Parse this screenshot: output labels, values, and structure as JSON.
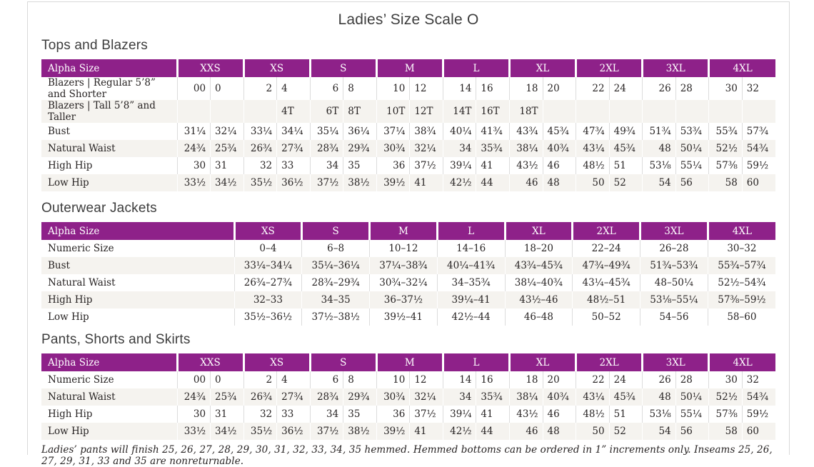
{
  "page": {
    "title": "Ladies’ Size Scale O",
    "footnote": "Ladies’ pants will finish 25, 26, 27, 28, 29, 30, 31, 32, 33, 34, 35 hemmed. Hemmed bottoms can be ordered in 1” increments only. Inseams 25, 26, 27, 29, 31, 33 and 35 are nonreturnable."
  },
  "colors": {
    "header_bg": "#8e2189",
    "header_text": "#ffffff",
    "row_stripe": "#f5f3ef",
    "grid_line": "#dcdcdc",
    "body_text": "#272323",
    "heading_text": "#3d3d3d",
    "frame_border": "#d9d9d9"
  },
  "tables": [
    {
      "name": "tops-and-blazers",
      "title": "Tops and Blazers",
      "header_label": "Alpha Size",
      "grouped": true,
      "label_col_width": 190,
      "size_headers": [
        "XXS",
        "XS",
        "S",
        "M",
        "L",
        "XL",
        "2XL",
        "3XL",
        "4XL"
      ],
      "rows": [
        {
          "label": "Blazers | Regular 5’8” and Shorter",
          "values": [
            "00",
            "0",
            "2",
            "4",
            "6",
            "8",
            "10",
            "12",
            "14",
            "16",
            "18",
            "20",
            "22",
            "24",
            "26",
            "28",
            "30",
            "32"
          ]
        },
        {
          "label": "Blazers | Tall 5’8” and Taller",
          "values": [
            "",
            "",
            "",
            "4T",
            "6T",
            "8T",
            "10T",
            "12T",
            "14T",
            "16T",
            "18T",
            "",
            "",
            "",
            "",
            "",
            "",
            ""
          ]
        },
        {
          "label": "Bust",
          "values": [
            "31¼",
            "32¼",
            "33¼",
            "34¼",
            "35¼",
            "36¼",
            "37¼",
            "38¾",
            "40¼",
            "41¾",
            "43¾",
            "45¾",
            "47¾",
            "49¾",
            "51¾",
            "53¾",
            "55¾",
            "57¾"
          ]
        },
        {
          "label": "Natural Waist",
          "values": [
            "24¾",
            "25¾",
            "26¾",
            "27¾",
            "28¾",
            "29¾",
            "30¾",
            "32¼",
            "34",
            "35¾",
            "38¼",
            "40¾",
            "43¼",
            "45¾",
            "48",
            "50¼",
            "52½",
            "54¾"
          ]
        },
        {
          "label": "High Hip",
          "values": [
            "30",
            "31",
            "32",
            "33",
            "34",
            "35",
            "36",
            "37½",
            "39¼",
            "41",
            "43½",
            "46",
            "48½",
            "51",
            "53⅛",
            "55¼",
            "57⅜",
            "59½"
          ]
        },
        {
          "label": "Low Hip",
          "values": [
            "33½",
            "34½",
            "35½",
            "36½",
            "37½",
            "38½",
            "39½",
            "41",
            "42½",
            "44",
            "46",
            "48",
            "50",
            "52",
            "54",
            "56",
            "58",
            "60"
          ]
        }
      ]
    },
    {
      "name": "outerwear-jackets",
      "title": "Outerwear Jackets",
      "header_label": "Alpha Size",
      "grouped": false,
      "label_col_width": 270,
      "size_headers": [
        "XS",
        "S",
        "M",
        "L",
        "XL",
        "2XL",
        "3XL",
        "4XL"
      ],
      "rows": [
        {
          "label": "Numeric Size",
          "values": [
            "0–4",
            "6–8",
            "10–12",
            "14–16",
            "18–20",
            "22–24",
            "26–28",
            "30–32"
          ]
        },
        {
          "label": "Bust",
          "values": [
            "33¼–34¼",
            "35¼–36¼",
            "37¼–38¾",
            "40¼–41¾",
            "43¾–45¾",
            "47¾–49¾",
            "51¾–53¾",
            "55¾–57¾"
          ]
        },
        {
          "label": "Natural Waist",
          "values": [
            "26¾–27¾",
            "28¾–29¾",
            "30¾–32¼",
            "34–35¾",
            "38¼–40¾",
            "43¼–45¾",
            "48–50¼",
            "52½–54¾"
          ]
        },
        {
          "label": "High Hip",
          "values": [
            "32–33",
            "34–35",
            "36–37½",
            "39¼–41",
            "43½–46",
            "48½–51",
            "53⅛–55¼",
            "57⅜–59½"
          ]
        },
        {
          "label": "Low Hip",
          "values": [
            "35½–36½",
            "37½–38½",
            "39½–41",
            "42½–44",
            "46–48",
            "50–52",
            "54–56",
            "58–60"
          ]
        }
      ]
    },
    {
      "name": "pants-shorts-and-skirts",
      "title": "Pants, Shorts and Skirts",
      "header_label": "Alpha Size",
      "grouped": true,
      "label_col_width": 190,
      "size_headers": [
        "XXS",
        "XS",
        "S",
        "M",
        "L",
        "XL",
        "2XL",
        "3XL",
        "4XL"
      ],
      "rows": [
        {
          "label": "Numeric Size",
          "values": [
            "00",
            "0",
            "2",
            "4",
            "6",
            "8",
            "10",
            "12",
            "14",
            "16",
            "18",
            "20",
            "22",
            "24",
            "26",
            "28",
            "30",
            "32"
          ]
        },
        {
          "label": "Natural Waist",
          "values": [
            "24¾",
            "25¾",
            "26¾",
            "27¾",
            "28¾",
            "29¾",
            "30¾",
            "32¼",
            "34",
            "35¾",
            "38¼",
            "40¾",
            "43¼",
            "45¾",
            "48",
            "50¼",
            "52½",
            "54¾"
          ]
        },
        {
          "label": "High Hip",
          "values": [
            "30",
            "31",
            "32",
            "33",
            "34",
            "35",
            "36",
            "37½",
            "39¼",
            "41",
            "43½",
            "46",
            "48½",
            "51",
            "53⅛",
            "55¼",
            "57⅜",
            "59½"
          ]
        },
        {
          "label": "Low Hip",
          "values": [
            "33½",
            "34½",
            "35½",
            "36½",
            "37½",
            "38½",
            "39½",
            "41",
            "42½",
            "44",
            "46",
            "48",
            "50",
            "52",
            "54",
            "56",
            "58",
            "60"
          ]
        }
      ]
    }
  ]
}
